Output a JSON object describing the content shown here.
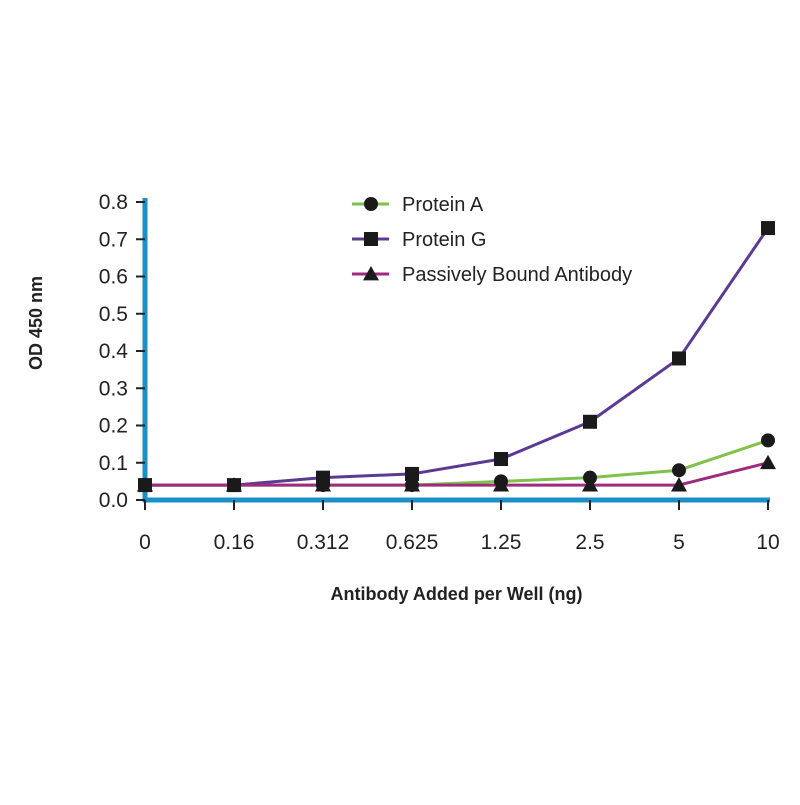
{
  "chart_data": {
    "type": "line",
    "categories": [
      "0",
      "0.16",
      "0.312",
      "0.625",
      "1.25",
      "2.5",
      "5",
      "10"
    ],
    "xlabel": "Antibody Added per Well (ng)",
    "ylabel": "OD 450 nm",
    "ylim": [
      0,
      0.8
    ],
    "yticks": [
      "0.0",
      "0.1",
      "0.2",
      "0.3",
      "0.4",
      "0.5",
      "0.6",
      "0.7",
      "0.8"
    ],
    "grid": false,
    "legend": "top",
    "axis_color": "#1a8fc9",
    "series": [
      {
        "name": "Protein A",
        "color": "#7ec24a",
        "marker": "circle",
        "values": [
          0.04,
          0.04,
          0.04,
          0.04,
          0.05,
          0.06,
          0.08,
          0.16
        ]
      },
      {
        "name": "Protein G",
        "color": "#5b3a93",
        "marker": "square",
        "values": [
          0.04,
          0.04,
          0.06,
          0.07,
          0.11,
          0.21,
          0.38,
          0.73
        ]
      },
      {
        "name": "Passively Bound Antibody",
        "color": "#a02a7e",
        "marker": "triangle",
        "values": [
          0.04,
          0.04,
          0.04,
          0.04,
          0.04,
          0.04,
          0.04,
          0.1
        ]
      }
    ]
  }
}
